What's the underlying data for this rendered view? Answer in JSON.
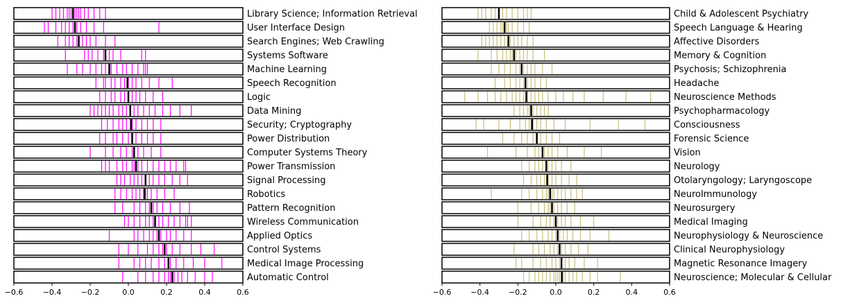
{
  "chart_data": [
    {
      "type": "rug",
      "color": "#ff00ff",
      "median_color": "#000000",
      "categories": [
        "Library Science; Information Retrieval",
        "User Interface Design",
        "Search Engines; Web Crawling",
        "Systems Software",
        "Machine Learning",
        "Speech Recognition",
        "Logic",
        "Data Mining",
        "Security; Cryptography",
        "Power Distribution",
        "Computer Systems Theory",
        "Power Transmission",
        "Signal Processing",
        "Robotics",
        "Pattern Recognition",
        "Wireless Communication",
        "Applied Optics",
        "Control Systems",
        "Medical Image Processing",
        "Automatic Control"
      ],
      "values": [
        [
          -0.4,
          -0.38,
          -0.36,
          -0.34,
          -0.32,
          -0.31,
          -0.3,
          -0.29,
          -0.28,
          -0.27,
          -0.26,
          -0.25,
          -0.23,
          -0.21,
          -0.18,
          -0.15,
          -0.12
        ],
        [
          -0.44,
          -0.42,
          -0.38,
          -0.35,
          -0.33,
          -0.31,
          -0.29,
          -0.28,
          -0.27,
          -0.25,
          -0.22,
          -0.18,
          -0.13,
          0.16
        ],
        [
          -0.37,
          -0.33,
          -0.31,
          -0.29,
          -0.27,
          -0.26,
          -0.24,
          -0.22,
          -0.2,
          -0.17,
          -0.12,
          -0.07
        ],
        [
          -0.33,
          -0.23,
          -0.21,
          -0.19,
          -0.16,
          -0.13,
          -0.12,
          -0.1,
          -0.08,
          -0.04,
          0.07,
          0.09
        ],
        [
          -0.32,
          -0.27,
          -0.24,
          -0.2,
          -0.17,
          -0.14,
          -0.12,
          -0.1,
          -0.09,
          -0.06,
          -0.03,
          -0.01,
          0.02,
          0.05,
          0.08,
          0.09,
          0.1
        ],
        [
          -0.17,
          -0.13,
          -0.12,
          -0.09,
          -0.07,
          -0.04,
          -0.02,
          0.0,
          0.02,
          0.04,
          0.07,
          0.11,
          0.16,
          0.23
        ],
        [
          -0.15,
          -0.12,
          -0.09,
          -0.07,
          -0.04,
          -0.02,
          0.0,
          0.02,
          0.04,
          0.06,
          0.09,
          0.13,
          0.18
        ],
        [
          -0.2,
          -0.18,
          -0.16,
          -0.14,
          -0.12,
          -0.1,
          -0.08,
          -0.05,
          -0.03,
          -0.01,
          0.01,
          0.03,
          0.05,
          0.08,
          0.11,
          0.14,
          0.18,
          0.22,
          0.27,
          0.33
        ],
        [
          -0.14,
          -0.11,
          -0.08,
          -0.05,
          -0.03,
          -0.01,
          0.01,
          0.02,
          0.04,
          0.07,
          0.1,
          0.13,
          0.17
        ],
        [
          -0.15,
          -0.12,
          -0.08,
          -0.06,
          -0.03,
          0.0,
          0.02,
          0.04,
          0.07,
          0.1,
          0.13,
          0.17
        ],
        [
          -0.2,
          -0.12,
          -0.08,
          -0.04,
          -0.01,
          0.02,
          0.03,
          0.05,
          0.08,
          0.12,
          0.17
        ],
        [
          -0.14,
          -0.12,
          -0.1,
          -0.06,
          -0.03,
          -0.01,
          0.02,
          0.03,
          0.04,
          0.05,
          0.07,
          0.1,
          0.13,
          0.16,
          0.19,
          0.22,
          0.25,
          0.29,
          0.3
        ],
        [
          -0.06,
          -0.04,
          -0.02,
          0.01,
          0.03,
          0.05,
          0.07,
          0.09,
          0.11,
          0.13,
          0.16,
          0.19,
          0.23,
          0.27,
          0.31
        ],
        [
          -0.07,
          -0.04,
          -0.01,
          0.02,
          0.04,
          0.06,
          0.08,
          0.09,
          0.1,
          0.12,
          0.15,
          0.19,
          0.24
        ],
        [
          -0.07,
          -0.03,
          0.03,
          0.06,
          0.09,
          0.11,
          0.12,
          0.13,
          0.15,
          0.18,
          0.22,
          0.27,
          0.32
        ],
        [
          -0.02,
          0.0,
          0.03,
          0.06,
          0.09,
          0.11,
          0.13,
          0.14,
          0.16,
          0.18,
          0.21,
          0.24,
          0.27,
          0.3,
          0.31,
          0.33
        ],
        [
          -0.1,
          0.03,
          0.05,
          0.08,
          0.11,
          0.13,
          0.15,
          0.16,
          0.17,
          0.2,
          0.22,
          0.25,
          0.29,
          0.33
        ],
        [
          -0.05,
          0.0,
          0.05,
          0.1,
          0.13,
          0.16,
          0.18,
          0.19,
          0.2,
          0.23,
          0.27,
          0.33,
          0.38,
          0.45
        ],
        [
          -0.05,
          0.03,
          0.06,
          0.09,
          0.12,
          0.16,
          0.19,
          0.21,
          0.22,
          0.25,
          0.29,
          0.34,
          0.4,
          0.49
        ],
        [
          -0.03,
          0.05,
          0.09,
          0.13,
          0.16,
          0.19,
          0.21,
          0.22,
          0.23,
          0.24,
          0.26,
          0.28,
          0.31,
          0.35,
          0.4,
          0.44
        ]
      ],
      "medians": [
        -0.29,
        -0.28,
        -0.26,
        -0.12,
        -0.1,
        -0.005,
        0.0,
        0.01,
        0.015,
        0.02,
        0.03,
        0.04,
        0.09,
        0.085,
        0.12,
        0.14,
        0.16,
        0.19,
        0.21,
        0.23
      ],
      "xlim": [
        -0.6,
        0.6
      ],
      "xticks": [
        {
          "value": -0.6,
          "label": "−0.6"
        },
        {
          "value": -0.4,
          "label": "−0.4"
        },
        {
          "value": -0.2,
          "label": "−0.2"
        },
        {
          "value": 0,
          "label": "0.0"
        },
        0.2,
        0.4,
        0.6
      ]
    },
    {
      "type": "rug",
      "color": "#c8be7a",
      "median_color": "#000000",
      "categories": [
        "Child & Adolescent Psychiatry",
        "Speech Language & Hearing",
        "Affective Disorders",
        "Memory & Cognition",
        "Psychosis; Schizophrenia",
        "Headache",
        "Neuroscience Methods",
        "Psychopharmacology",
        "Consciousness",
        "Forensic Science",
        "Vision",
        "Neurology",
        "Otolaryngology; Laryngoscope",
        "NeuroImmunology",
        "Neurosurgery",
        "Medical Imaging",
        "Neurophysiology & Neuroscience",
        "Clinical Neurophysiology",
        "Magnetic Resonance Imagery",
        "Neuroscience; Molecular & Cellular"
      ],
      "values": [
        [
          -0.41,
          -0.39,
          -0.37,
          -0.34,
          -0.32,
          -0.3,
          -0.28,
          -0.26,
          -0.23,
          -0.2,
          -0.17,
          -0.15,
          -0.13
        ],
        [
          -0.35,
          -0.33,
          -0.31,
          -0.29,
          -0.28,
          -0.27,
          -0.26,
          -0.25,
          -0.23,
          -0.2,
          -0.17,
          -0.14
        ],
        [
          -0.39,
          -0.37,
          -0.35,
          -0.33,
          -0.31,
          -0.29,
          -0.27,
          -0.25,
          -0.24,
          -0.22,
          -0.2,
          -0.18,
          -0.15,
          -0.12
        ],
        [
          -0.41,
          -0.34,
          -0.31,
          -0.28,
          -0.26,
          -0.24,
          -0.23,
          -0.22,
          -0.21,
          -0.19,
          -0.17,
          -0.15,
          -0.12,
          -0.06
        ],
        [
          -0.34,
          -0.3,
          -0.27,
          -0.24,
          -0.21,
          -0.19,
          -0.18,
          -0.17,
          -0.15,
          -0.13,
          -0.11,
          -0.07,
          -0.02
        ],
        [
          -0.32,
          -0.27,
          -0.24,
          -0.21,
          -0.19,
          -0.17,
          -0.16,
          -0.15,
          -0.13,
          -0.11,
          -0.08,
          -0.05
        ],
        [
          -0.48,
          -0.41,
          -0.36,
          -0.32,
          -0.29,
          -0.26,
          -0.23,
          -0.21,
          -0.19,
          -0.17,
          -0.16,
          -0.15,
          -0.13,
          -0.11,
          -0.09,
          -0.07,
          -0.04,
          0.0,
          0.04,
          0.09,
          0.15,
          0.25,
          0.37,
          0.5
        ],
        [
          -0.22,
          -0.19,
          -0.17,
          -0.15,
          -0.14,
          -0.13,
          -0.12,
          -0.1,
          -0.08,
          -0.06,
          -0.04
        ],
        [
          -0.42,
          -0.38,
          -0.3,
          -0.24,
          -0.19,
          -0.16,
          -0.14,
          -0.13,
          -0.12,
          -0.1,
          -0.08,
          -0.05,
          -0.01,
          0.05,
          0.18,
          0.33,
          0.47
        ],
        [
          -0.28,
          -0.22,
          -0.18,
          -0.15,
          -0.12,
          -0.1,
          -0.08,
          -0.05,
          -0.02,
          0.02
        ],
        [
          -0.36,
          -0.21,
          -0.15,
          -0.11,
          -0.09,
          -0.07,
          -0.06,
          -0.04,
          -0.02,
          0.01,
          0.06,
          0.15,
          0.24
        ],
        [
          -0.18,
          -0.14,
          -0.11,
          -0.09,
          -0.07,
          -0.05,
          -0.04,
          -0.02,
          0.0,
          0.03,
          0.08
        ],
        [
          -0.17,
          -0.13,
          -0.1,
          -0.08,
          -0.06,
          -0.05,
          -0.04,
          -0.02,
          0.0,
          0.03,
          0.07,
          0.11
        ],
        [
          -0.34,
          -0.18,
          -0.14,
          -0.1,
          -0.07,
          -0.05,
          -0.04,
          -0.03,
          -0.02,
          -0.01,
          0.01,
          0.03,
          0.05,
          0.08,
          0.11,
          0.14
        ],
        [
          -0.2,
          -0.13,
          -0.09,
          -0.06,
          -0.04,
          -0.03,
          -0.02,
          -0.01,
          0.01,
          0.03,
          0.06,
          0.1
        ],
        [
          -0.2,
          -0.12,
          -0.08,
          -0.05,
          -0.03,
          -0.01,
          0.0,
          0.01,
          0.03,
          0.05,
          0.08,
          0.13,
          0.2
        ],
        [
          -0.18,
          -0.14,
          -0.1,
          -0.07,
          -0.04,
          -0.02,
          0.0,
          0.01,
          0.02,
          0.04,
          0.06,
          0.09,
          0.13,
          0.18,
          0.28
        ],
        [
          -0.22,
          -0.12,
          -0.09,
          -0.06,
          -0.03,
          -0.01,
          0.01,
          0.02,
          0.03,
          0.05,
          0.08,
          0.12,
          0.17
        ],
        [
          -0.21,
          -0.18,
          -0.12,
          -0.08,
          -0.05,
          -0.02,
          0.0,
          0.02,
          0.03,
          0.05,
          0.07,
          0.1,
          0.15,
          0.22
        ],
        [
          -0.17,
          -0.14,
          -0.11,
          -0.09,
          -0.07,
          -0.05,
          -0.03,
          -0.01,
          0.0,
          0.01,
          0.02,
          0.03,
          0.04,
          0.05,
          0.07,
          0.09,
          0.11,
          0.14,
          0.18,
          0.22,
          0.34
        ]
      ],
      "medians": [
        -0.3,
        -0.27,
        -0.25,
        -0.22,
        -0.18,
        -0.16,
        -0.155,
        -0.13,
        -0.125,
        -0.1,
        -0.07,
        -0.05,
        -0.045,
        -0.03,
        -0.02,
        0.0,
        0.01,
        0.02,
        0.03,
        0.032
      ],
      "xlim": [
        -0.6,
        0.6
      ],
      "xticks": [
        {
          "value": -0.6,
          "label": "−0.6"
        },
        {
          "value": -0.4,
          "label": "−0.4"
        },
        {
          "value": -0.2,
          "label": "−0.2"
        },
        {
          "value": 0,
          "label": "0.0"
        },
        0.2,
        0.4,
        0.6
      ]
    }
  ]
}
